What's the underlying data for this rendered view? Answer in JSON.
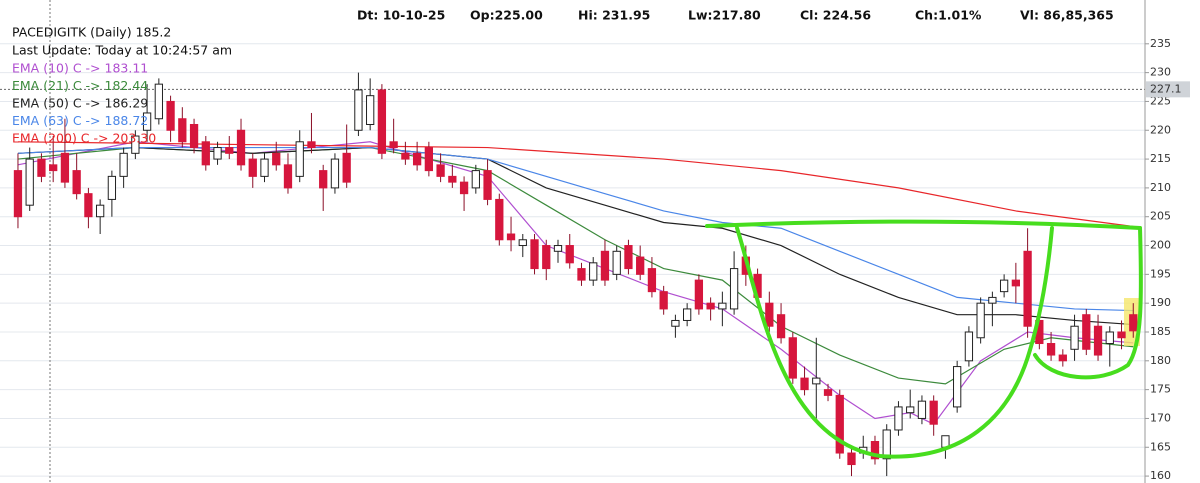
{
  "chart_data": {
    "type": "candlestick",
    "header": [
      "Dt: 10-10-25",
      "Op:225.00",
      "Hi: 231.95",
      "Lw:217.80",
      "Cl: 224.56",
      "Ch:1.01%",
      "Vl: 86,85,365"
    ],
    "title": "PACEDIGITK (Daily) 185.2",
    "subtitle": "Last Update: Today at 10:24:57 am",
    "up_color": "#ffffff",
    "down_color": "#d6163d",
    "open": [
      213,
      207,
      215,
      214,
      216,
      213,
      209,
      205,
      208,
      212,
      216,
      220,
      222,
      225,
      222,
      221,
      218,
      215,
      217,
      220,
      215,
      212,
      216,
      214,
      212,
      218,
      213,
      210,
      216,
      220,
      221,
      227,
      218,
      216,
      216,
      217,
      214,
      212,
      211,
      210,
      213,
      208,
      202,
      200,
      201,
      200,
      199,
      200,
      196,
      194,
      199,
      195,
      200,
      198,
      196,
      192,
      186,
      187,
      194,
      190,
      189,
      189,
      198,
      195,
      190,
      188,
      184,
      177,
      176,
      175,
      174,
      164,
      164,
      166,
      163,
      168,
      171,
      170,
      173,
      165,
      172,
      180,
      184,
      190,
      192,
      194,
      199,
      187,
      183,
      181,
      182,
      188,
      186,
      183,
      185,
      188
    ],
    "high": [
      216,
      217,
      216,
      219,
      222,
      216,
      210,
      208,
      213,
      217,
      220,
      228,
      229,
      226,
      224,
      222,
      219,
      218,
      219,
      222,
      216,
      216,
      218,
      216,
      220,
      223,
      214,
      216,
      221,
      230,
      229,
      228,
      222,
      218,
      218,
      218,
      216,
      214,
      212,
      214,
      215,
      209,
      205,
      202,
      202,
      201,
      201,
      202,
      197,
      198,
      201,
      200,
      201,
      200,
      198,
      193,
      188,
      190,
      195,
      191,
      192,
      199,
      200,
      196,
      192,
      190,
      185,
      179,
      184,
      176,
      175,
      165,
      167,
      167,
      169,
      173,
      175,
      174,
      174,
      167,
      180,
      186,
      191,
      192,
      195,
      197,
      203,
      189,
      185,
      182,
      188,
      189,
      188,
      186,
      187,
      190
    ],
    "low": [
      203,
      206,
      211,
      211,
      210,
      208,
      203,
      202,
      205,
      210,
      215,
      218,
      221,
      218,
      217,
      216,
      213,
      214,
      215,
      213,
      210,
      211,
      213,
      209,
      211,
      216,
      206,
      209,
      210,
      219,
      220,
      215,
      216,
      214,
      213,
      212,
      211,
      210,
      206,
      209,
      207,
      200,
      199,
      198,
      195,
      194,
      197,
      196,
      193,
      193,
      193,
      194,
      195,
      194,
      191,
      188,
      184,
      186,
      188,
      187,
      186,
      188,
      193,
      190,
      185,
      183,
      176,
      174,
      170,
      173,
      163,
      160,
      163,
      162,
      160,
      167,
      170,
      169,
      167,
      163,
      171,
      179,
      183,
      186,
      191,
      190,
      184,
      182,
      180,
      179,
      180,
      181,
      180,
      179,
      182,
      184
    ],
    "close": [
      205,
      215,
      212,
      213,
      211,
      209,
      205,
      207,
      212,
      216,
      219,
      223,
      228,
      220,
      218,
      217,
      214,
      217,
      216,
      214,
      212,
      215,
      214,
      210,
      218,
      217,
      210,
      215,
      211,
      227,
      226,
      216,
      217,
      215,
      214,
      213,
      212,
      211,
      209,
      213,
      208,
      201,
      201,
      201,
      196,
      196,
      200,
      197,
      194,
      197,
      194,
      199,
      196,
      195,
      192,
      189,
      187,
      189,
      189,
      189,
      190,
      196,
      195,
      191,
      186,
      184,
      177,
      175,
      177,
      174,
      164,
      162,
      165,
      163,
      168,
      172,
      172,
      173,
      169,
      167,
      179,
      185,
      190,
      191,
      194,
      193,
      186,
      183,
      181,
      180,
      186,
      182,
      181,
      185,
      184,
      185.2
    ],
    "series": [
      {
        "name": "EMA (10) C -> 183.11",
        "color": "#b04fd0",
        "x": [
          0,
          10,
          20,
          30,
          40,
          45,
          50,
          55,
          60,
          65,
          70,
          73,
          76,
          78,
          82,
          86,
          90,
          95
        ],
        "values": [
          214,
          218,
          216,
          218,
          212,
          200,
          196,
          192,
          189,
          182,
          174,
          170,
          171,
          169,
          180,
          185,
          184,
          183.11
        ]
      },
      {
        "name": "EMA (21) C -> 182.44",
        "color": "#3c8a3c",
        "x": [
          0,
          10,
          20,
          30,
          40,
          45,
          50,
          55,
          60,
          65,
          70,
          75,
          79,
          84,
          88,
          95
        ],
        "values": [
          215,
          217,
          216,
          217,
          213,
          207,
          201,
          196,
          194,
          186,
          181,
          177,
          176,
          182,
          184,
          182.44
        ]
      },
      {
        "name": "EMA (50) C -> 186.29",
        "color": "#222222",
        "x": [
          0,
          10,
          20,
          30,
          40,
          45,
          50,
          55,
          60,
          65,
          70,
          75,
          80,
          85,
          90,
          95
        ],
        "values": [
          216,
          217,
          216,
          217,
          215,
          210,
          207,
          204,
          203,
          200,
          195,
          191,
          188,
          188,
          187,
          186.29
        ]
      },
      {
        "name": "EMA (63) C -> 188.72",
        "color": "#4a86e8",
        "x": [
          0,
          10,
          30,
          40,
          50,
          55,
          60,
          65,
          70,
          75,
          80,
          85,
          90,
          95
        ],
        "values": [
          216,
          217,
          217,
          215,
          209,
          206,
          204,
          203,
          199,
          195,
          191,
          190,
          189,
          188.72
        ]
      },
      {
        "name": "EMA (200) C -> 203.30",
        "color": "#e8262a",
        "x": [
          0,
          40,
          55,
          65,
          75,
          85,
          95
        ],
        "values": [
          218,
          217,
          215,
          213,
          210,
          206,
          203.3
        ]
      }
    ],
    "marker": 227.1,
    "xlim": [
      -1.53,
      96.0
    ],
    "ylim": [
      158.8,
      242.6
    ],
    "yticks": [
      160,
      165,
      170,
      175,
      180,
      185,
      190,
      195,
      200,
      205,
      210,
      215,
      220,
      225,
      230,
      235
    ],
    "grid": true
  }
}
